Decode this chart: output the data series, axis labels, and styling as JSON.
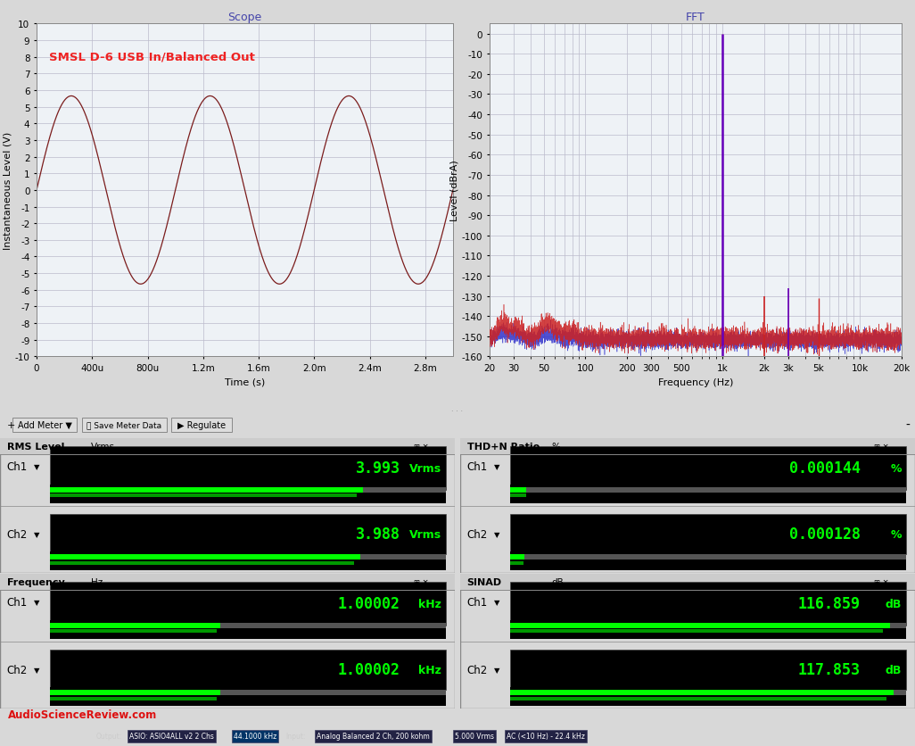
{
  "scope_title": "Scope",
  "fft_title": "FFT",
  "scope_label": "SMSL D-6 USB In/Balanced Out",
  "scope_xlabel": "Time (s)",
  "scope_ylabel": "Instantaneous Level (V)",
  "scope_ylim": [
    -10,
    10
  ],
  "scope_yticks": [
    -10,
    -9,
    -8,
    -7,
    -6,
    -5,
    -4,
    -3,
    -2,
    -1,
    0,
    1,
    2,
    3,
    4,
    5,
    6,
    7,
    8,
    9,
    10
  ],
  "scope_xticks_labels": [
    "0",
    "400u",
    "800u",
    "1.2m",
    "1.6m",
    "2.0m",
    "2.4m",
    "2.8m"
  ],
  "scope_xticks_vals": [
    0,
    0.0004,
    0.0008,
    0.0012,
    0.0016,
    0.002,
    0.0024,
    0.0028
  ],
  "scope_amplitude": 5.65,
  "scope_frequency": 1000,
  "scope_duration": 0.003,
  "scope_line_color": "#7B1C1C",
  "fft_ylabel": "Level (dBrA)",
  "fft_xlabel": "Frequency (Hz)",
  "fft_ylim": [
    -160,
    5
  ],
  "fft_yticks": [
    0,
    -10,
    -20,
    -30,
    -40,
    -50,
    -60,
    -70,
    -80,
    -90,
    -100,
    -110,
    -120,
    -130,
    -140,
    -150,
    -160
  ],
  "fft_xtick_vals": [
    20,
    30,
    50,
    100,
    200,
    300,
    500,
    1000,
    2000,
    3000,
    5000,
    10000,
    20000
  ],
  "fft_xtick_labels": [
    "20",
    "30",
    "50",
    "100",
    "200",
    "300",
    "500",
    "1k",
    "2k",
    "3k",
    "5k",
    "10k",
    "20k"
  ],
  "bg_color": "#D8D8D8",
  "plot_bg_color": "#EEF2F6",
  "grid_color": "#BBBBCC",
  "title_color": "#4444AA",
  "toolbar_color": "#CCCCCC",
  "panel_bg": "#C4C4CC",
  "green_text": "#00FF00",
  "rms_ch1": "3.993",
  "rms_unit1": "Vrms",
  "rms_ch2": "3.988",
  "rms_unit2": "Vrms",
  "thd_ch1": "0.000144",
  "thd_unit1": "%",
  "thd_ch2": "0.000128",
  "thd_unit2": "%",
  "freq_ch1": "1.00002",
  "freq_unit1": "kHz",
  "freq_ch2": "1.00002",
  "freq_unit2": "kHz",
  "sinad_ch1": "116.859",
  "sinad_unit1": "dB",
  "sinad_ch2": "117.853",
  "sinad_unit2": "dB",
  "watermark": "AudioScienceReview.com",
  "fft_red": "#CC2222",
  "fft_blue": "#3333CC",
  "fft_spike_purple": "#6600BB"
}
